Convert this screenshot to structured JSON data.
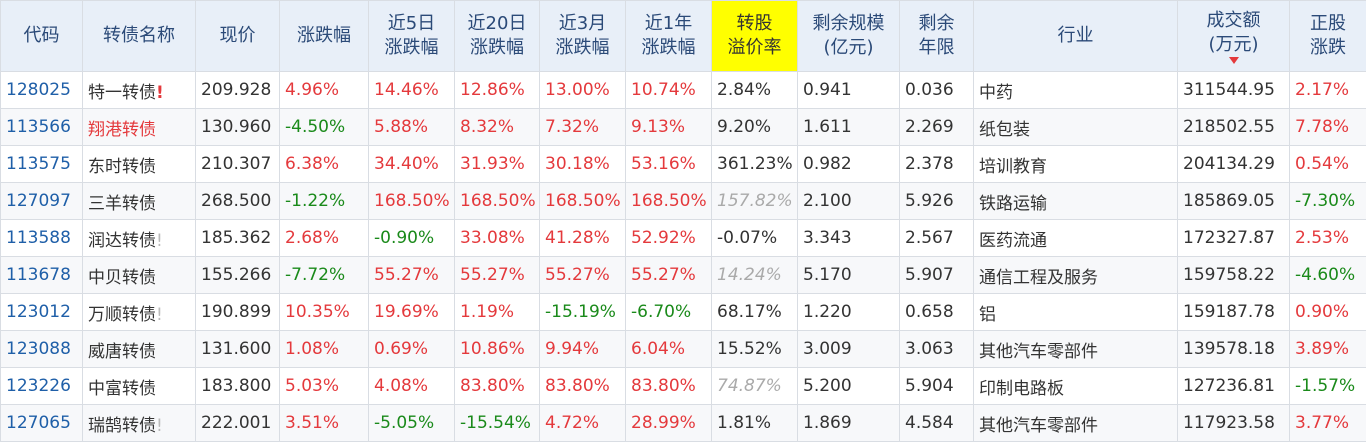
{
  "headers": [
    {
      "key": "code",
      "line1": "代码",
      "line2": ""
    },
    {
      "key": "name",
      "line1": "转债名称",
      "line2": ""
    },
    {
      "key": "price",
      "line1": "现价",
      "line2": ""
    },
    {
      "key": "chg",
      "line1": "涨跌幅",
      "line2": ""
    },
    {
      "key": "chg5",
      "line1": "近5日",
      "line2": "涨跌幅"
    },
    {
      "key": "chg20",
      "line1": "近20日",
      "line2": "涨跌幅"
    },
    {
      "key": "chg3m",
      "line1": "近3月",
      "line2": "涨跌幅"
    },
    {
      "key": "chg1y",
      "line1": "近1年",
      "line2": "涨跌幅"
    },
    {
      "key": "premium",
      "line1": "转股",
      "line2": "溢价率"
    },
    {
      "key": "scale",
      "line1": "剩余规模",
      "line2": "(亿元)"
    },
    {
      "key": "years",
      "line1": "剩余",
      "line2": "年限"
    },
    {
      "key": "industry",
      "line1": "行业",
      "line2": ""
    },
    {
      "key": "turnover",
      "line1": "成交额",
      "line2": "(万元)"
    },
    {
      "key": "stock_chg",
      "line1": "正股",
      "line2": "涨跌"
    }
  ],
  "rows": [
    {
      "code": "128025",
      "name": "特一转债",
      "bang": "!",
      "bang_style": "red",
      "name_style": "",
      "price": "209.928",
      "chg": "4.96%",
      "chg5": "14.46%",
      "chg20": "12.86%",
      "chg3m": "13.00%",
      "chg1y": "10.74%",
      "premium": "2.84%",
      "premium_muted": false,
      "scale": "0.941",
      "years": "0.036",
      "industry": "中药",
      "turnover": "311544.95",
      "stock_chg": "2.17%"
    },
    {
      "code": "113566",
      "name": "翔港转债",
      "bang": "",
      "bang_style": "",
      "name_style": "red",
      "price": "130.960",
      "chg": "-4.50%",
      "chg5": "5.88%",
      "chg20": "8.32%",
      "chg3m": "7.32%",
      "chg1y": "9.13%",
      "premium": "9.20%",
      "premium_muted": false,
      "scale": "1.611",
      "years": "2.269",
      "industry": "纸包装",
      "turnover": "218502.55",
      "stock_chg": "7.78%"
    },
    {
      "code": "113575",
      "name": "东时转债",
      "bang": "",
      "bang_style": "",
      "name_style": "",
      "price": "210.307",
      "chg": "6.38%",
      "chg5": "34.40%",
      "chg20": "31.93%",
      "chg3m": "30.18%",
      "chg1y": "53.16%",
      "premium": "361.23%",
      "premium_muted": false,
      "scale": "0.982",
      "years": "2.378",
      "industry": "培训教育",
      "turnover": "204134.29",
      "stock_chg": "0.54%"
    },
    {
      "code": "127097",
      "name": "三羊转债",
      "bang": "",
      "bang_style": "",
      "name_style": "",
      "price": "268.500",
      "chg": "-1.22%",
      "chg5": "168.50%",
      "chg20": "168.50%",
      "chg3m": "168.50%",
      "chg1y": "168.50%",
      "premium": "157.82%",
      "premium_muted": true,
      "scale": "2.100",
      "years": "5.926",
      "industry": "铁路运输",
      "turnover": "185869.05",
      "stock_chg": "-7.30%"
    },
    {
      "code": "113588",
      "name": "润达转债",
      "bang": "!",
      "bang_style": "gray",
      "name_style": "",
      "price": "185.362",
      "chg": "2.68%",
      "chg5": "-0.90%",
      "chg20": "33.08%",
      "chg3m": "41.28%",
      "chg1y": "52.92%",
      "premium": "-0.07%",
      "premium_muted": false,
      "scale": "3.343",
      "years": "2.567",
      "industry": "医药流通",
      "turnover": "172327.87",
      "stock_chg": "2.53%"
    },
    {
      "code": "113678",
      "name": "中贝转债",
      "bang": "",
      "bang_style": "",
      "name_style": "",
      "price": "155.266",
      "chg": "-7.72%",
      "chg5": "55.27%",
      "chg20": "55.27%",
      "chg3m": "55.27%",
      "chg1y": "55.27%",
      "premium": "14.24%",
      "premium_muted": true,
      "scale": "5.170",
      "years": "5.907",
      "industry": "通信工程及服务",
      "turnover": "159758.22",
      "stock_chg": "-4.60%"
    },
    {
      "code": "123012",
      "name": "万顺转债",
      "bang": "!",
      "bang_style": "gray",
      "name_style": "",
      "price": "190.899",
      "chg": "10.35%",
      "chg5": "19.69%",
      "chg20": "1.19%",
      "chg3m": "-15.19%",
      "chg1y": "-6.70%",
      "premium": "68.17%",
      "premium_muted": false,
      "scale": "1.220",
      "years": "0.658",
      "industry": "铝",
      "turnover": "159187.78",
      "stock_chg": "0.90%"
    },
    {
      "code": "123088",
      "name": "威唐转债",
      "bang": "",
      "bang_style": "",
      "name_style": "",
      "price": "131.600",
      "chg": "1.08%",
      "chg5": "0.69%",
      "chg20": "10.86%",
      "chg3m": "9.94%",
      "chg1y": "6.04%",
      "premium": "15.52%",
      "premium_muted": false,
      "scale": "3.009",
      "years": "3.063",
      "industry": "其他汽车零部件",
      "turnover": "139578.18",
      "stock_chg": "3.89%"
    },
    {
      "code": "123226",
      "name": "中富转债",
      "bang": "",
      "bang_style": "",
      "name_style": "",
      "price": "183.800",
      "chg": "5.03%",
      "chg5": "4.08%",
      "chg20": "83.80%",
      "chg3m": "83.80%",
      "chg1y": "83.80%",
      "premium": "74.87%",
      "premium_muted": true,
      "scale": "5.200",
      "years": "5.904",
      "industry": "印制电路板",
      "turnover": "127236.81",
      "stock_chg": "-1.57%"
    },
    {
      "code": "127065",
      "name": "瑞鹄转债",
      "bang": "!",
      "bang_style": "gray",
      "name_style": "",
      "price": "222.001",
      "chg": "3.51%",
      "chg5": "-5.05%",
      "chg20": "-15.54%",
      "chg3m": "4.72%",
      "chg1y": "28.99%",
      "premium": "1.81%",
      "premium_muted": false,
      "scale": "1.869",
      "years": "4.584",
      "industry": "其他汽车零部件",
      "turnover": "117923.58",
      "stock_chg": "3.77%"
    }
  ],
  "colors": {
    "header_bg": "#e8eff8",
    "highlight": "#ffff00",
    "up": "#e4393c",
    "down": "#1a8a1a",
    "code": "#1f5fa8"
  },
  "sort": {
    "column": "turnover",
    "direction": "desc",
    "icon": "sort-desc-icon"
  }
}
